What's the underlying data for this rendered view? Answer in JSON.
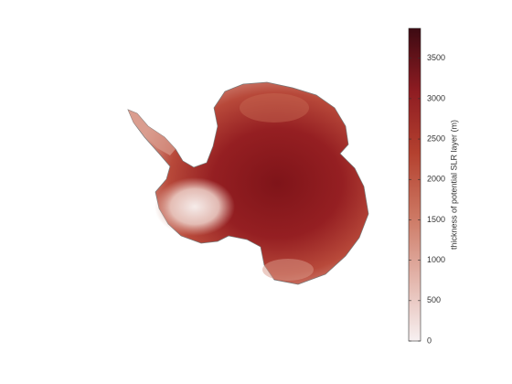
{
  "chart_data": {
    "type": "map",
    "colorbar": {
      "label": "thickness of potential SLR layer (m)",
      "lim": [
        0,
        3870
      ],
      "ticks": [
        0,
        500,
        1000,
        1500,
        2000,
        2500,
        3000,
        3500
      ],
      "colormap": [
        "#f7f0f1",
        "#e3b5ab",
        "#cc7762",
        "#b4412f",
        "#8e1c22",
        "#3d0a12"
      ]
    }
  }
}
